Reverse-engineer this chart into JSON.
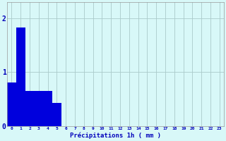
{
  "values": [
    0.8,
    1.82,
    0.65,
    0.65,
    0.65,
    0.42,
    0,
    0,
    0,
    0,
    0,
    0,
    0,
    0,
    0,
    0,
    0,
    0,
    0,
    0,
    0,
    0,
    0,
    0
  ],
  "bar_color": "#0000dd",
  "background_color": "#d8f8f8",
  "grid_color": "#aacaca",
  "xlabel": "Précipitations 1h ( mm )",
  "xlabel_color": "#0000bb",
  "tick_color": "#0000bb",
  "ylim": [
    0,
    2.3
  ],
  "yticks": [
    0,
    1,
    2
  ],
  "num_bars": 24,
  "bar_width": 1.0
}
